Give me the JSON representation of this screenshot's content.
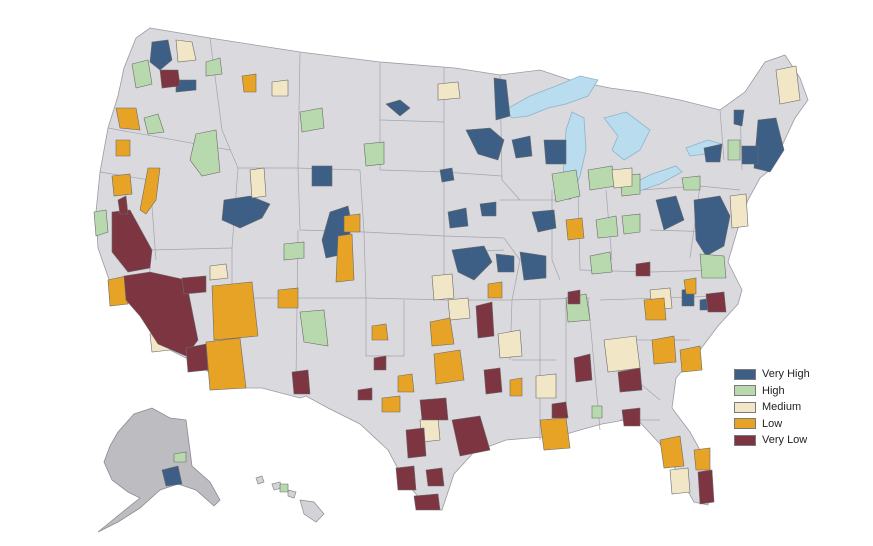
{
  "legend": {
    "items": [
      {
        "label": "Very High",
        "color": "#3d5f85"
      },
      {
        "label": "High",
        "color": "#b8d9ae"
      },
      {
        "label": "Medium",
        "color": "#f1e6c6"
      },
      {
        "label": "Low",
        "color": "#e6a325"
      },
      {
        "label": "Very Low",
        "color": "#7d3542"
      }
    ]
  },
  "colors": {
    "land": "#d9d9de",
    "alaska": "#bdbdc1",
    "water": "#b9dcee",
    "border": "#9a9aa2"
  }
}
